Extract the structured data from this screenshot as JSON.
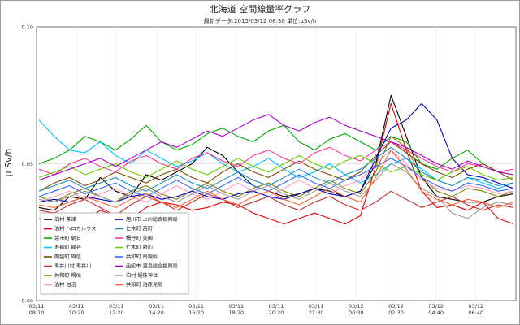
{
  "chart_data": {
    "type": "line",
    "title": "北海道 空間線量率グラフ",
    "subtitle": "最新データ:2015/03/12 08:30  単位:μSv/h",
    "ylabel": "μ Sv/h",
    "xlabel": "",
    "ylim": [
      0.0,
      0.1
    ],
    "y_ticks": [
      "0.00",
      "0.05",
      "0.10"
    ],
    "x_ticks": [
      [
        "03/11",
        "08:10"
      ],
      [
        "03/11",
        "10:20"
      ],
      [
        "03/11",
        "12:20"
      ],
      [
        "03/11",
        "14:20"
      ],
      [
        "03/11",
        "16:20"
      ],
      [
        "03/11",
        "18:20"
      ],
      [
        "03/11",
        "20:20"
      ],
      [
        "03/11",
        "22:30"
      ],
      [
        "03/12",
        "00:30"
      ],
      [
        "03/12",
        "02:30"
      ],
      [
        "03/12",
        "04:40"
      ],
      [
        "03/12",
        "06:40"
      ]
    ],
    "grid": true,
    "legend_position": "bottom-left",
    "series": [
      {
        "name": "泊村 茶津",
        "color": "#000000",
        "values": [
          0.034,
          0.033,
          0.038,
          0.037,
          0.045,
          0.04,
          0.038,
          0.046,
          0.044,
          0.047,
          0.05,
          0.056,
          0.053,
          0.047,
          0.042,
          0.04,
          0.038,
          0.039,
          0.041,
          0.04,
          0.038,
          0.04,
          0.05,
          0.075,
          0.06,
          0.045,
          0.038,
          0.037,
          0.036,
          0.036,
          0.038,
          0.039
        ]
      },
      {
        "name": "泊村 ヘロカルウス",
        "color": "#e00000",
        "values": [
          0.03,
          0.028,
          0.026,
          0.029,
          0.033,
          0.031,
          0.03,
          0.034,
          0.036,
          0.035,
          0.033,
          0.034,
          0.036,
          0.035,
          0.032,
          0.03,
          0.028,
          0.03,
          0.032,
          0.03,
          0.028,
          0.031,
          0.049,
          0.072,
          0.055,
          0.04,
          0.034,
          0.035,
          0.033,
          0.036,
          0.03,
          0.028
        ]
      },
      {
        "name": "余市町 朝日",
        "color": "#00aa00",
        "values": [
          0.05,
          0.052,
          0.055,
          0.06,
          0.058,
          0.055,
          0.059,
          0.064,
          0.058,
          0.055,
          0.057,
          0.061,
          0.063,
          0.06,
          0.058,
          0.062,
          0.064,
          0.058,
          0.055,
          0.059,
          0.061,
          0.058,
          0.055,
          0.06,
          0.058,
          0.05,
          0.048,
          0.052,
          0.055,
          0.05,
          0.047,
          0.046
        ]
      },
      {
        "name": "寿都町 緑谷",
        "color": "#00c0ff",
        "values": [
          0.066,
          0.06,
          0.055,
          0.054,
          0.058,
          0.053,
          0.05,
          0.055,
          0.052,
          0.049,
          0.051,
          0.054,
          0.05,
          0.047,
          0.049,
          0.052,
          0.048,
          0.045,
          0.047,
          0.05,
          0.046,
          0.043,
          0.046,
          0.05,
          0.052,
          0.048,
          0.044,
          0.042,
          0.045,
          0.043,
          0.041,
          0.043
        ]
      },
      {
        "name": "蘭越町 雄信",
        "color": "#7b4a00",
        "values": [
          0.04,
          0.043,
          0.045,
          0.042,
          0.044,
          0.047,
          0.045,
          0.043,
          0.046,
          0.048,
          0.045,
          0.043,
          0.047,
          0.05,
          0.047,
          0.045,
          0.048,
          0.051,
          0.048,
          0.046,
          0.044,
          0.047,
          0.053,
          0.058,
          0.054,
          0.05,
          0.047,
          0.045,
          0.048,
          0.05,
          0.047,
          0.044
        ]
      },
      {
        "name": "寿井川村 寿井川",
        "color": "#c03030",
        "values": [
          0.033,
          0.032,
          0.035,
          0.037,
          0.034,
          0.031,
          0.035,
          0.038,
          0.036,
          0.033,
          0.036,
          0.039,
          0.037,
          0.034,
          0.036,
          0.038,
          0.035,
          0.033,
          0.036,
          0.038,
          0.035,
          0.033,
          0.036,
          0.04,
          0.037,
          0.034,
          0.036,
          0.038,
          0.035,
          0.033,
          0.035,
          0.034
        ]
      },
      {
        "name": "共和町 幌似",
        "color": "#808000",
        "values": [
          0.038,
          0.036,
          0.039,
          0.041,
          0.038,
          0.036,
          0.04,
          0.042,
          0.039,
          0.037,
          0.04,
          0.043,
          0.04,
          0.038,
          0.041,
          0.043,
          0.04,
          0.038,
          0.041,
          0.044,
          0.041,
          0.039,
          0.047,
          0.06,
          0.056,
          0.045,
          0.04,
          0.038,
          0.041,
          0.04,
          0.038,
          0.04
        ]
      },
      {
        "name": "泊村 泊沼",
        "color": "#ff99cc",
        "values": [
          0.036,
          0.038,
          0.04,
          0.037,
          0.039,
          0.041,
          0.038,
          0.036,
          0.039,
          0.042,
          0.039,
          0.037,
          0.04,
          0.043,
          0.04,
          0.038,
          0.041,
          0.044,
          0.041,
          0.039,
          0.042,
          0.044,
          0.05,
          0.055,
          0.05,
          0.044,
          0.041,
          0.04,
          0.042,
          0.041,
          0.039,
          0.04
        ]
      },
      {
        "name": "旭川市 上川総合振興局",
        "color": "#0000c0",
        "values": [
          0.036,
          0.037,
          0.036,
          0.038,
          0.037,
          0.036,
          0.038,
          0.039,
          0.037,
          0.038,
          0.04,
          0.038,
          0.037,
          0.039,
          0.04,
          0.038,
          0.037,
          0.039,
          0.041,
          0.039,
          0.038,
          0.04,
          0.052,
          0.063,
          0.066,
          0.072,
          0.066,
          0.052,
          0.046,
          0.045,
          0.043,
          0.041
        ]
      },
      {
        "name": "仁木町 西町",
        "color": "#1f8fbf",
        "values": [
          0.04,
          0.042,
          0.044,
          0.041,
          0.043,
          0.045,
          0.042,
          0.04,
          0.043,
          0.046,
          0.043,
          0.041,
          0.044,
          0.047,
          0.044,
          0.042,
          0.045,
          0.048,
          0.045,
          0.043,
          0.046,
          0.048,
          0.052,
          0.056,
          0.052,
          0.047,
          0.044,
          0.042,
          0.045,
          0.044,
          0.042,
          0.043
        ]
      },
      {
        "name": "積丹町 美国",
        "color": "#ff3399",
        "values": [
          0.048,
          0.046,
          0.05,
          0.052,
          0.049,
          0.047,
          0.051,
          0.053,
          0.05,
          0.048,
          0.052,
          0.054,
          0.051,
          0.049,
          0.053,
          0.055,
          0.052,
          0.05,
          0.054,
          0.056,
          0.053,
          0.051,
          0.055,
          0.058,
          0.055,
          0.052,
          0.049,
          0.047,
          0.05,
          0.049,
          0.047,
          0.048
        ]
      },
      {
        "name": "仁木町 銀山",
        "color": "#66cc00",
        "values": [
          0.045,
          0.047,
          0.049,
          0.046,
          0.048,
          0.05,
          0.047,
          0.045,
          0.048,
          0.051,
          0.048,
          0.046,
          0.049,
          0.052,
          0.049,
          0.047,
          0.05,
          0.053,
          0.05,
          0.048,
          0.051,
          0.053,
          0.05,
          0.047,
          0.049,
          0.046,
          0.044,
          0.047,
          0.049,
          0.046,
          0.044,
          0.045
        ]
      },
      {
        "name": "共和町 南幌似",
        "color": "#3366ff",
        "values": [
          0.038,
          0.04,
          0.042,
          0.039,
          0.041,
          0.043,
          0.04,
          0.038,
          0.041,
          0.044,
          0.041,
          0.039,
          0.042,
          0.045,
          0.042,
          0.04,
          0.043,
          0.046,
          0.043,
          0.041,
          0.044,
          0.046,
          0.049,
          0.052,
          0.049,
          0.045,
          0.042,
          0.04,
          0.043,
          0.042,
          0.04,
          0.041
        ]
      },
      {
        "name": "函館市 渡島総合振興局",
        "color": "#aa00cc",
        "values": [
          0.044,
          0.046,
          0.048,
          0.05,
          0.052,
          0.049,
          0.052,
          0.055,
          0.058,
          0.056,
          0.059,
          0.062,
          0.06,
          0.063,
          0.066,
          0.068,
          0.064,
          0.062,
          0.065,
          0.067,
          0.064,
          0.062,
          0.06,
          0.058,
          0.056,
          0.053,
          0.05,
          0.048,
          0.051,
          0.049,
          0.047,
          0.046
        ]
      },
      {
        "name": "泊村 堀株神社",
        "color": "#999999",
        "values": [
          0.037,
          0.036,
          0.038,
          0.04,
          0.038,
          0.036,
          0.039,
          0.041,
          0.038,
          0.036,
          0.039,
          0.042,
          0.039,
          0.037,
          0.04,
          0.042,
          0.039,
          0.037,
          0.04,
          0.043,
          0.04,
          0.038,
          0.044,
          0.05,
          0.047,
          0.041,
          0.038,
          0.032,
          0.03,
          0.034,
          0.036,
          0.035
        ]
      },
      {
        "name": "共和町 泊原発局",
        "color": "#ff6633",
        "values": [
          0.035,
          0.034,
          0.036,
          0.038,
          0.036,
          0.034,
          0.037,
          0.039,
          0.036,
          0.034,
          0.037,
          0.04,
          0.037,
          0.035,
          0.038,
          0.04,
          0.037,
          0.035,
          0.038,
          0.041,
          0.038,
          0.036,
          0.045,
          0.055,
          0.048,
          0.04,
          0.037,
          0.035,
          0.037,
          0.036,
          0.034,
          0.036
        ]
      }
    ]
  }
}
